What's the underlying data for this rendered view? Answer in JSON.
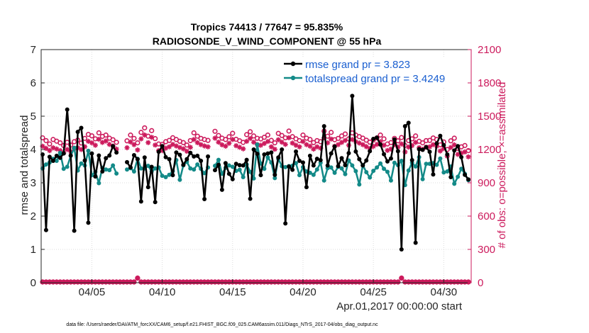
{
  "colors": {
    "rmse": "#000000",
    "spread": "#138a88",
    "obs": "#cc1a5c",
    "legend_text": "#1a5fd0"
  },
  "chart_data": {
    "type": "line",
    "title": "Tropics 74413 / 77647 = 95.835%",
    "subtitle": "RADIOSONDE_V_WIND_COMPONENT @ 55 hPa",
    "xlabel": "Apr.01,2017 00:00:00 start",
    "ylabel_left": "rmse and totalspread",
    "ylabel_right": "# of obs: o=possible; ×=assimilated",
    "xlim": [
      0.4,
      30.95
    ],
    "ylim_left": [
      0,
      7
    ],
    "ylim_right": [
      0,
      2100
    ],
    "x_ticks": [
      4,
      9,
      14,
      19,
      24,
      29
    ],
    "x_tick_labels": [
      "04/05",
      "04/10",
      "04/15",
      "04/20",
      "04/25",
      "04/30"
    ],
    "y_ticks_left": [
      0,
      1,
      2,
      3,
      4,
      5,
      6,
      7
    ],
    "y_tick_labels_left": [
      "0",
      "1",
      "2",
      "3",
      "4",
      "5",
      "6",
      "7"
    ],
    "y_ticks_right": [
      0,
      300,
      600,
      900,
      1200,
      1500,
      1800,
      2100
    ],
    "y_tick_labels_right": [
      "0",
      "300",
      "600",
      "900",
      "1200",
      "1500",
      "1800",
      "2100"
    ],
    "legend": [
      {
        "name": "rmse grand pr = 3.823",
        "series": "rmse"
      },
      {
        "name": "totalspread grand pr = 3.4249",
        "series": "totalspread"
      }
    ],
    "footer": "data file: /Users/raeder/DAI/ATM_forcXX/CAM6_setup/f.e21.FHIST_BGC.f09_025.CAM6assim.011/Diags_NTrS_2017-04/obs_diag_output.nc",
    "x_start": 0.5,
    "x_step": 0.25,
    "series": [
      {
        "name": "rmse",
        "axis": "left",
        "values": [
          3.85,
          1.58,
          3.78,
          3.66,
          3.81,
          3.75,
          3.88,
          5.2,
          3.82,
          1.56,
          4.53,
          4.65,
          3.67,
          1.8,
          3.88,
          3.19,
          3.82,
          3.34,
          3.74,
          3.82,
          4.1,
          3.91,
          null,
          null,
          3.62,
          3.46,
          3.83,
          3.71,
          2.44,
          3.76,
          2.87,
          3.48,
          2.42,
          3.93,
          4.1,
          3.77,
          3.71,
          3.23,
          3.91,
          3.84,
          3.54,
          3.71,
          3.9,
          3.79,
          3.81,
          3.66,
          2.51,
          3.79,
          null,
          3.38,
          3.54,
          2.79,
          3.59,
          3.27,
          3.11,
          3.57,
          3.53,
          3.52,
          3.69,
          2.52,
          4.0,
          3.87,
          3.23,
          3.85,
          3.88,
          3.91,
          3.24,
          3.76,
          4.0,
          1.78,
          3.49,
          3.39,
          3.94,
          3.66,
          3.61,
          2.87,
          3.81,
          3.52,
          3.72,
          3.68,
          4.7,
          3.52,
          3.88,
          4.09,
          3.5,
          3.74,
          3.53,
          3.89,
          5.61,
          3.94,
          3.71,
          3.52,
          3.67,
          3.95,
          4.32,
          4.36,
          4.15,
          3.86,
          3.64,
          3.73,
          4.3,
          3.95,
          1.0,
          4.7,
          4.8,
          3.68,
          1.2,
          4.01,
          3.99,
          4.07,
          3.93,
          3.25,
          4.18,
          4.41,
          4.13,
          3.85,
          3.17,
          3.97,
          4.1,
          3.77,
          3.24,
          3.1
        ]
      },
      {
        "name": "totalspread",
        "axis": "left",
        "values": [
          3.43,
          3.55,
          3.61,
          3.72,
          3.66,
          3.9,
          3.42,
          3.48,
          3.81,
          4.05,
          3.37,
          3.58,
          3.52,
          3.96,
          3.23,
          3.33,
          2.99,
          3.45,
          3.4,
          3.38,
          3.52,
          3.28,
          null,
          null,
          3.4,
          3.44,
          3.34,
          3.72,
          3.43,
          3.43,
          3.51,
          3.34,
          3.43,
          3.46,
          3.21,
          3.17,
          3.24,
          3.35,
          3.68,
          3.09,
          3.52,
          3.63,
          3.43,
          3.4,
          3.55,
          3.42,
          3.29,
          3.46,
          null,
          3.51,
          3.69,
          3.27,
          3.45,
          3.52,
          3.48,
          3.36,
          3.39,
          3.17,
          3.55,
          3.33,
          3.13,
          4.15,
          3.58,
          3.42,
          3.76,
          3.61,
          3.14,
          3.72,
          3.5,
          3.47,
          3.5,
          3.51,
          3.59,
          3.23,
          3.47,
          3.34,
          3.3,
          3.24,
          3.4,
          3.6,
          3.07,
          3.44,
          3.46,
          3.3,
          3.48,
          3.43,
          3.26,
          3.67,
          3.52,
          3.35,
          2.95,
          3.53,
          3.32,
          3.16,
          3.36,
          3.46,
          3.58,
          3.42,
          3.33,
          3.07,
          3.6,
          3.53,
          3.66,
          2.93,
          3.37,
          3.6,
          3.49,
          3.77,
          3.11,
          3.57,
          3.57,
          3.59,
          3.54,
          3.73,
          3.31,
          3.34,
          3.49,
          2.97,
          3.18,
          3.42,
          3.27,
          3.08
        ]
      },
      {
        "name": "obs_possible",
        "axis": "right",
        "values": [
          1305,
          1280,
          1250,
          1290,
          1275,
          1260,
          1235,
          1265,
          1240,
          1270,
          1285,
          1258,
          1300,
          1336,
          1323,
          1296,
          1350,
          1318,
          1330,
          1302,
          1288,
          1265,
          null,
          null,
          1278,
          1330,
          1300,
          1260,
          1354,
          1395,
          1320,
          1370,
          1298,
          1250,
          1246,
          1270,
          1282,
          1306,
          1290,
          1274,
          1262,
          1240,
          1280,
          1350,
          1320,
          1300,
          1290,
          1282,
          null,
          1364,
          1326,
          1302,
          1290,
          1315,
          1346,
          1292,
          1278,
          1264,
          1334,
          1360,
          1322,
          1301,
          1295,
          1310,
          1330,
          1282,
          1260,
          1345,
          1326,
          1305,
          1366,
          1316,
          1296,
          1280,
          1330,
          1302,
          1290,
          1262,
          1280,
          1270,
          1366,
          1320,
          1354,
          1288,
          1300,
          1322,
          1340,
          1296,
          1349,
          1330,
          1316,
          1302,
          1284,
          1266,
          1286,
          1304,
          1330,
          1296,
          1250,
          1262,
          1300,
          1278,
          1308,
          1236,
          1280,
          1296,
          1322,
          1274,
          1260,
          1280,
          1282,
          1304,
          1290,
          1242,
          1268,
          1200,
          1278,
          1302,
          1210,
          1224,
          1236,
          1190
        ]
      },
      {
        "name": "obs_assimilated",
        "axis": "right",
        "values": [
          1230,
          1210,
          1190,
          1215,
          1205,
          1190,
          1170,
          1200,
          1180,
          1210,
          1215,
          1200,
          1225,
          1274,
          1260,
          1238,
          1292,
          1264,
          1276,
          1246,
          1231,
          1204,
          null,
          null,
          1216,
          1268,
          1244,
          1196,
          1296,
          1330,
          1262,
          1310,
          1240,
          1190,
          1190,
          1212,
          1224,
          1246,
          1232,
          1218,
          1206,
          1184,
          1220,
          1290,
          1262,
          1244,
          1232,
          1224,
          null,
          1302,
          1266,
          1242,
          1230,
          1256,
          1290,
          1234,
          1220,
          1206,
          1274,
          1300,
          1266,
          1244,
          1238,
          1254,
          1272,
          1224,
          1202,
          1288,
          1266,
          1246,
          1306,
          1258,
          1238,
          1224,
          1272,
          1244,
          1230,
          1204,
          1224,
          1212,
          1306,
          1260,
          1294,
          1230,
          1244,
          1264,
          1282,
          1238,
          1290,
          1270,
          1258,
          1244,
          1226,
          1208,
          1228,
          1246,
          1270,
          1238,
          1192,
          1204,
          1244,
          1222,
          1250,
          1178,
          1222,
          1236,
          1264,
          1216,
          1202,
          1222,
          1224,
          1244,
          1230,
          1186,
          1208,
          1140,
          1218,
          1242,
          1156,
          1168,
          1178,
          1134
        ]
      },
      {
        "name": "obs_possible_zero",
        "axis": "right",
        "values": [
          0,
          0,
          0,
          0,
          0,
          0,
          0,
          0,
          0,
          0,
          0,
          0,
          0,
          0,
          0,
          0,
          0,
          0,
          0,
          0,
          0,
          0,
          0,
          0,
          0,
          0,
          0,
          35,
          0,
          0,
          0,
          0,
          0,
          0,
          0,
          0,
          0,
          0,
          0,
          0,
          0,
          0,
          0,
          0,
          0,
          0,
          0,
          0,
          0,
          0,
          0,
          0,
          0,
          0,
          0,
          0,
          0,
          0,
          0,
          0,
          0,
          0,
          0,
          0,
          0,
          0,
          0,
          0,
          0,
          0,
          0,
          0,
          0,
          0,
          0,
          0,
          0,
          0,
          0,
          0,
          0,
          0,
          0,
          0,
          0,
          0,
          0,
          0,
          0,
          0,
          0,
          0,
          0,
          0,
          0,
          0,
          0,
          0,
          0,
          0,
          0,
          0,
          35,
          0,
          0,
          0,
          0,
          0,
          0,
          0,
          0,
          0,
          0,
          0,
          0,
          0,
          0,
          0,
          0,
          0,
          0,
          0
        ]
      },
      {
        "name": "obs_assimilated_zero",
        "axis": "right",
        "values": [
          0,
          0,
          0,
          0,
          0,
          0,
          0,
          0,
          0,
          0,
          0,
          0,
          0,
          0,
          0,
          0,
          0,
          0,
          0,
          0,
          0,
          0,
          0,
          0,
          0,
          0,
          0,
          35,
          0,
          0,
          0,
          0,
          0,
          0,
          0,
          0,
          0,
          0,
          0,
          0,
          0,
          0,
          0,
          0,
          0,
          0,
          0,
          0,
          0,
          0,
          0,
          0,
          0,
          0,
          0,
          0,
          0,
          0,
          0,
          0,
          0,
          0,
          0,
          0,
          0,
          0,
          0,
          0,
          0,
          0,
          0,
          0,
          0,
          0,
          0,
          0,
          0,
          0,
          0,
          0,
          0,
          0,
          0,
          0,
          0,
          0,
          0,
          0,
          0,
          0,
          0,
          0,
          0,
          0,
          0,
          0,
          0,
          0,
          0,
          0,
          0,
          0,
          35,
          0,
          0,
          0,
          0,
          0,
          0,
          0,
          0,
          0,
          0,
          0,
          0,
          0,
          0,
          0,
          0,
          0,
          0,
          0
        ]
      }
    ]
  }
}
